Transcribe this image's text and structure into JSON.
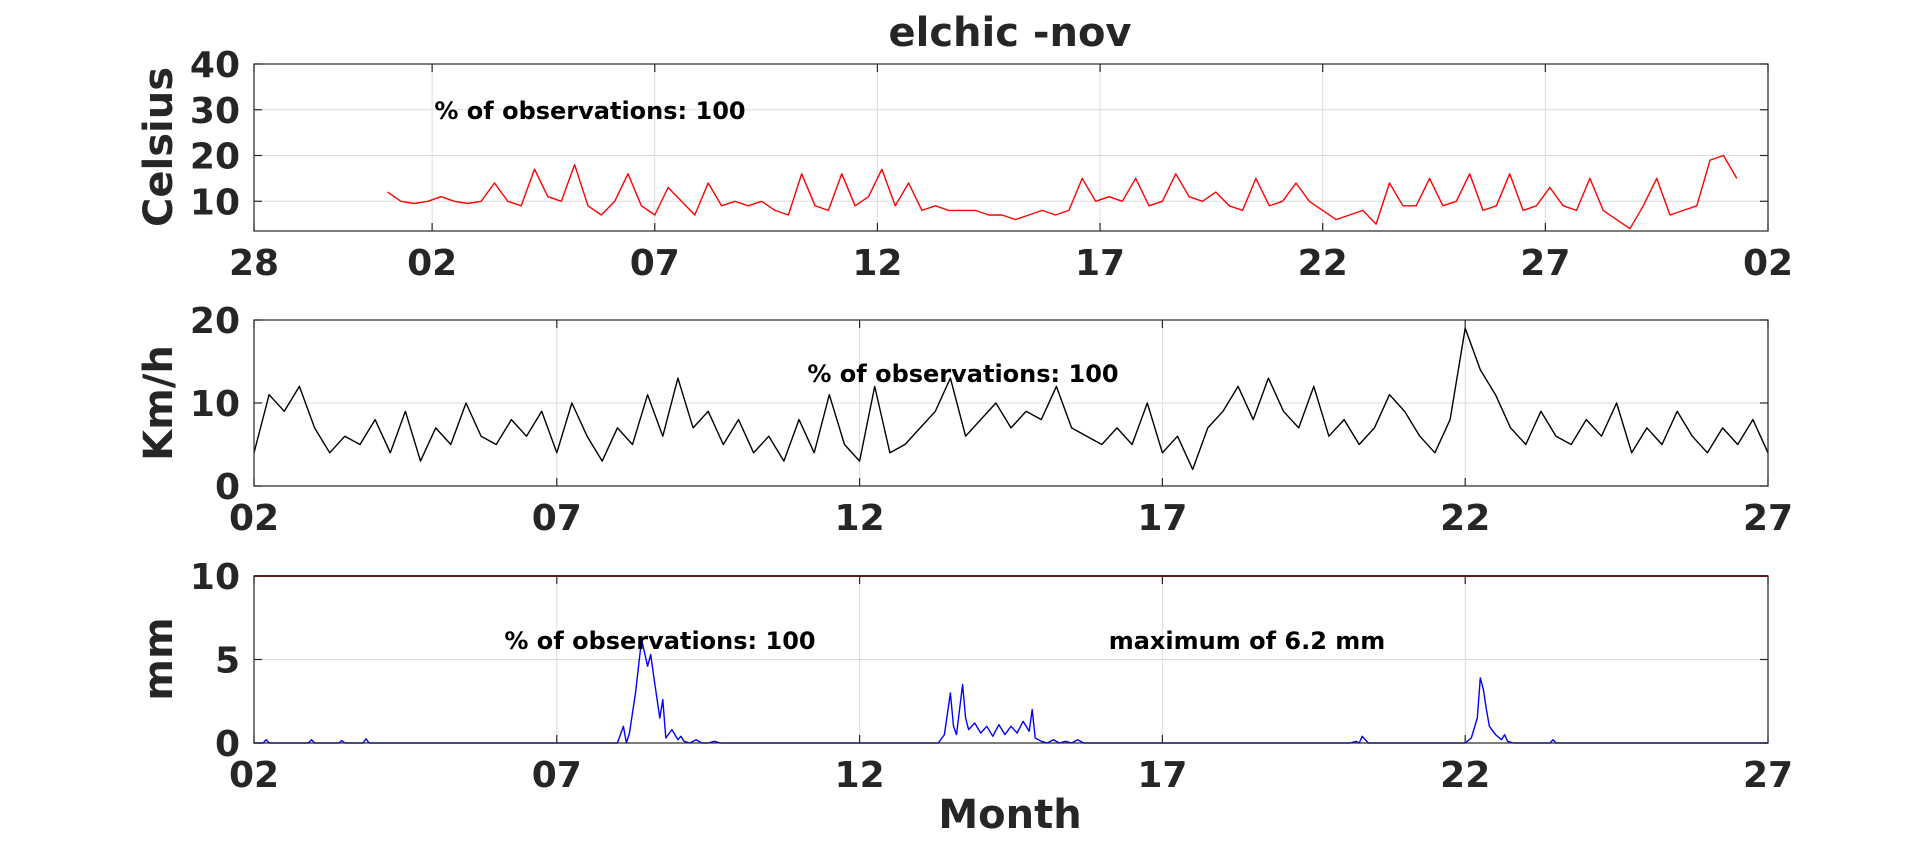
{
  "title": "elchic -nov",
  "xlabel": "Month",
  "chart_data": [
    {
      "type": "line",
      "ylabel": "Celsius",
      "ylim": [
        3.5,
        40
      ],
      "yticks": [
        10,
        20,
        30,
        40
      ],
      "x_tick_labels": [
        "28",
        "02",
        "07",
        "12",
        "17",
        "22",
        "27",
        "02"
      ],
      "x_tick_days": [
        -2,
        2,
        7,
        12,
        17,
        22,
        27,
        32
      ],
      "xlim_days": [
        -2,
        32
      ],
      "annotation": "% of observations: 100",
      "grid": true,
      "series": [
        {
          "color": "#ff0000",
          "x_days": [
            1.0,
            1.3,
            1.6,
            1.9,
            2.2,
            2.5,
            2.8,
            3.1,
            3.4,
            3.7,
            4.0,
            4.3,
            4.6,
            4.9,
            5.2,
            5.5,
            5.8,
            6.1,
            6.4,
            6.7,
            7.0,
            7.3,
            7.6,
            7.9,
            8.2,
            8.5,
            8.8,
            9.1,
            9.4,
            9.7,
            10.0,
            10.3,
            10.6,
            10.9,
            11.2,
            11.5,
            11.8,
            12.1,
            12.4,
            12.7,
            13.0,
            13.3,
            13.6,
            13.9,
            14.2,
            14.5,
            14.8,
            15.1,
            15.4,
            15.7,
            16.0,
            16.3,
            16.6,
            16.9,
            17.2,
            17.5,
            17.8,
            18.1,
            18.4,
            18.7,
            19.0,
            19.3,
            19.6,
            19.9,
            20.2,
            20.5,
            20.8,
            21.1,
            21.4,
            21.7,
            22.0,
            22.3,
            22.6,
            22.9,
            23.2,
            23.5,
            23.8,
            24.1,
            24.4,
            24.7,
            25.0,
            25.3,
            25.6,
            25.9,
            26.2,
            26.5,
            26.8,
            27.1,
            27.4,
            27.7,
            28.0,
            28.3,
            28.6,
            28.9,
            29.2,
            29.5,
            29.8,
            30.1,
            30.4,
            30.7,
            31.0,
            31.3
          ],
          "y": [
            12,
            10,
            9.5,
            10,
            11,
            10,
            9.5,
            10,
            14,
            10,
            9,
            17,
            11,
            10,
            18,
            9,
            7,
            10,
            16,
            9,
            7,
            13,
            10,
            7,
            14,
            9,
            10,
            9,
            10,
            8,
            7,
            16,
            9,
            8,
            16,
            9,
            11,
            17,
            9,
            14,
            8,
            9,
            8,
            8,
            8,
            7,
            7,
            6,
            7,
            8,
            7,
            8,
            15,
            10,
            11,
            10,
            15,
            9,
            10,
            16,
            11,
            10,
            12,
            9,
            8,
            15,
            9,
            10,
            14,
            10,
            8,
            6,
            7,
            8,
            5,
            14,
            9,
            9,
            15,
            9,
            10,
            16,
            8,
            9,
            16,
            8,
            9,
            13,
            9,
            8,
            15,
            8,
            6,
            4,
            9,
            15,
            7,
            8,
            9,
            19,
            20,
            15
          ]
        }
      ]
    },
    {
      "type": "line",
      "ylabel": "Km/h",
      "ylim": [
        0,
        20
      ],
      "yticks": [
        0,
        10,
        20
      ],
      "x_tick_labels": [
        "02",
        "07",
        "12",
        "17",
        "22",
        "27"
      ],
      "x_tick_days": [
        2,
        7,
        12,
        17,
        22,
        27
      ],
      "xlim_days": [
        2,
        27
      ],
      "annotation": "% of observations: 100",
      "grid": true,
      "series": [
        {
          "color": "#000000",
          "x_days": [
            2.0,
            2.25,
            2.5,
            2.75,
            3.0,
            3.25,
            3.5,
            3.75,
            4.0,
            4.25,
            4.5,
            4.75,
            5.0,
            5.25,
            5.5,
            5.75,
            6.0,
            6.25,
            6.5,
            6.75,
            7.0,
            7.25,
            7.5,
            7.75,
            8.0,
            8.25,
            8.5,
            8.75,
            9.0,
            9.25,
            9.5,
            9.75,
            10.0,
            10.25,
            10.5,
            10.75,
            11.0,
            11.25,
            11.5,
            11.75,
            12.0,
            12.25,
            12.5,
            12.75,
            13.0,
            13.25,
            13.5,
            13.75,
            14.0,
            14.25,
            14.5,
            14.75,
            15.0,
            15.25,
            15.5,
            15.75,
            16.0,
            16.25,
            16.5,
            16.75,
            17.0,
            17.25,
            17.5,
            17.75,
            18.0,
            18.25,
            18.5,
            18.75,
            19.0,
            19.25,
            19.5,
            19.75,
            20.0,
            20.25,
            20.5,
            20.75,
            21.0,
            21.25,
            21.5,
            21.75,
            22.0,
            22.25,
            22.5,
            22.75,
            23.0,
            23.25,
            23.5,
            23.75,
            24.0,
            24.25,
            24.5,
            24.75,
            25.0,
            25.25,
            25.5,
            25.75,
            26.0,
            26.25,
            26.5,
            26.75,
            27.0
          ],
          "y": [
            4,
            11,
            9,
            12,
            7,
            4,
            6,
            5,
            8,
            4,
            9,
            3,
            7,
            5,
            10,
            6,
            5,
            8,
            6,
            9,
            4,
            10,
            6,
            3,
            7,
            5,
            11,
            6,
            13,
            7,
            9,
            5,
            8,
            4,
            6,
            3,
            8,
            4,
            11,
            5,
            3,
            12,
            4,
            5,
            7,
            9,
            13,
            6,
            8,
            10,
            7,
            9,
            8,
            12,
            7,
            6,
            5,
            7,
            5,
            10,
            4,
            6,
            2,
            7,
            9,
            12,
            8,
            13,
            9,
            7,
            12,
            6,
            8,
            5,
            7,
            11,
            9,
            6,
            4,
            8,
            19,
            14,
            11,
            7,
            5,
            9,
            6,
            5,
            8,
            6,
            10,
            4,
            7,
            5,
            9,
            6,
            4,
            7,
            5,
            8,
            4
          ]
        }
      ]
    },
    {
      "type": "line",
      "ylabel": "mm",
      "ylim": [
        0,
        10
      ],
      "yticks": [
        0,
        5,
        10
      ],
      "x_tick_labels": [
        "02",
        "07",
        "12",
        "17",
        "22",
        "27"
      ],
      "x_tick_days": [
        2,
        7,
        12,
        17,
        22,
        27
      ],
      "xlim_days": [
        2,
        27
      ],
      "annotation": "% of observations: 100",
      "annotation2": "maximum of 6.2 mm",
      "grid": true,
      "reference_line": {
        "y": 10,
        "color": "#cc0000"
      },
      "series": [
        {
          "color": "#0000ff",
          "x_days": [
            2.0,
            2.15,
            2.2,
            2.25,
            2.4,
            2.9,
            2.95,
            3.0,
            3.4,
            3.45,
            3.5,
            3.8,
            3.85,
            3.9,
            4.0,
            8.0,
            8.1,
            8.15,
            8.2,
            8.3,
            8.4,
            8.5,
            8.55,
            8.6,
            8.7,
            8.75,
            8.8,
            8.9,
            8.95,
            9.0,
            9.05,
            9.1,
            9.2,
            9.3,
            9.4,
            9.5,
            9.6,
            9.7,
            13.3,
            13.4,
            13.5,
            13.55,
            13.6,
            13.7,
            13.75,
            13.8,
            13.9,
            14.0,
            14.1,
            14.2,
            14.3,
            14.4,
            14.5,
            14.6,
            14.7,
            14.8,
            14.85,
            14.9,
            15.0,
            15.1,
            15.2,
            15.3,
            15.4,
            15.5,
            15.6,
            15.7,
            15.8,
            15.9,
            20.1,
            20.2,
            20.25,
            20.3,
            20.4,
            22.0,
            22.1,
            22.2,
            22.25,
            22.3,
            22.35,
            22.4,
            22.5,
            22.6,
            22.65,
            22.7,
            22.8,
            23.4,
            23.45,
            23.5,
            27.0
          ],
          "y": [
            0,
            0,
            0.2,
            0,
            0,
            0,
            0.2,
            0,
            0,
            0.15,
            0,
            0,
            0.25,
            0,
            0,
            0,
            1.0,
            0,
            0.6,
            3.0,
            6.2,
            4.6,
            5.3,
            4.0,
            1.5,
            2.6,
            0.3,
            0.8,
            0.5,
            0.2,
            0.4,
            0.1,
            0,
            0.2,
            0,
            0,
            0.1,
            0,
            0,
            0.5,
            3.0,
            1.0,
            0.5,
            3.5,
            1.5,
            0.8,
            1.2,
            0.6,
            1.0,
            0.4,
            1.1,
            0.5,
            1.0,
            0.6,
            1.3,
            0.7,
            2.0,
            0.3,
            0.1,
            0,
            0.2,
            0,
            0.1,
            0,
            0.2,
            0,
            0,
            0,
            0,
            0.1,
            0,
            0.4,
            0,
            0,
            0.3,
            1.5,
            3.9,
            3.2,
            2.0,
            1.0,
            0.5,
            0.2,
            0.5,
            0.1,
            0,
            0,
            0.2,
            0,
            0
          ]
        }
      ]
    }
  ]
}
